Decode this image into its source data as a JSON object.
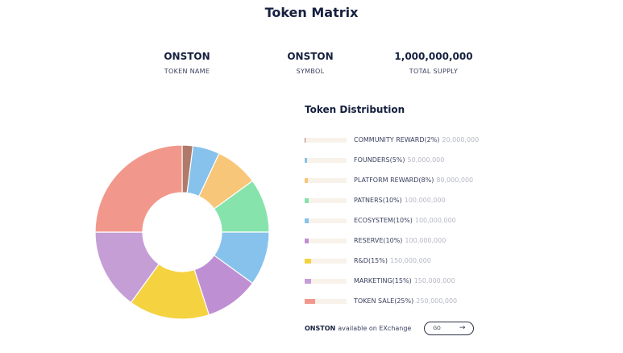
{
  "title": "Token Matrix",
  "stats": [
    {
      "value": "ONSTON",
      "label": "TOKEN NAME"
    },
    {
      "value": "ONSTON",
      "label": "SYMBOL"
    },
    {
      "value": "1,000,000,000",
      "label": "TOTAL SUPPLY"
    }
  ],
  "distribution": {
    "title": "Token Distribution",
    "items": [
      {
        "label": "COMMUNITY REWARD(2%)",
        "amount": "20,000,000",
        "percent": 2,
        "color": "#b07a6a"
      },
      {
        "label": "FOUNDERS(5%)",
        "amount": "50,000,000",
        "percent": 5,
        "color": "#86c2ec"
      },
      {
        "label": "PLATFORM REWARD(8%)",
        "amount": "80,000,000",
        "percent": 8,
        "color": "#f8c678"
      },
      {
        "label": "PATNERS(10%)",
        "amount": "100,000,000",
        "percent": 10,
        "color": "#86e3ac"
      },
      {
        "label": "ECOSYSTEM(10%)",
        "amount": "100,000,000",
        "percent": 10,
        "color": "#86c2ec"
      },
      {
        "label": "RESERVE(10%)",
        "amount": "100,000,000",
        "percent": 10,
        "color": "#bf8fd3"
      },
      {
        "label": "R&D(15%)",
        "amount": "150,000,000",
        "percent": 15,
        "color": "#f5d23f"
      },
      {
        "label": "MARKETING(15%)",
        "amount": "150,000,000",
        "percent": 15,
        "color": "#c59ed6"
      },
      {
        "label": "TOKEN SALE(25%)",
        "amount": "250,000,000",
        "percent": 25,
        "color": "#f2978b"
      }
    ]
  },
  "exchange": {
    "brand": "ONSTON",
    "text": "available on EXchange",
    "button_label": "GO",
    "button_icon": "arrow-right-icon"
  }
}
